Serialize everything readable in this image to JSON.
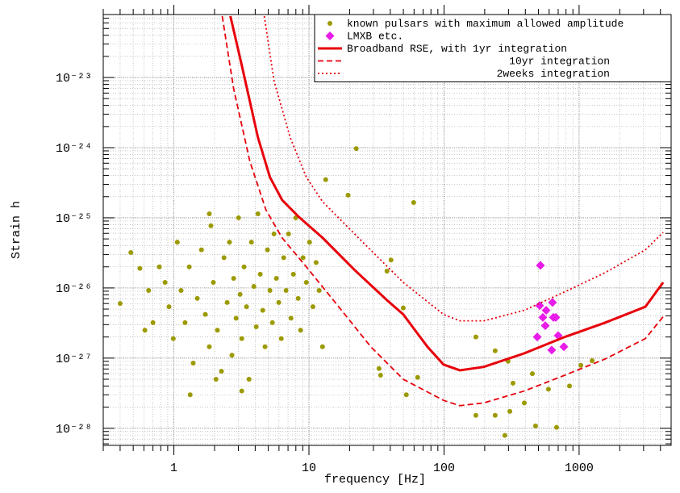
{
  "chart_data": {
    "type": "scatter",
    "xlabel": "frequency [Hz]",
    "ylabel": "Strain h",
    "xlog": true,
    "ylog": true,
    "grid": true,
    "legend": "upper right",
    "xlim": [
      0.3,
      4800
    ],
    "ylim": [
      5.7e-29,
      7.9e-23
    ],
    "xticks": [
      1,
      10,
      100,
      1000
    ],
    "yticks": [
      {
        "value": 1e-28,
        "label": "10⁻²⁸"
      },
      {
        "value": 1e-27,
        "label": "10⁻²⁷"
      },
      {
        "value": 1e-26,
        "label": "10⁻²⁶"
      },
      {
        "value": 1e-25,
        "label": "10⁻²⁵"
      },
      {
        "value": 1e-24,
        "label": "10⁻²⁴"
      },
      {
        "value": 1e-23,
        "label": "10⁻²³"
      }
    ],
    "series": [
      {
        "name": "known pulsars with maximum allowed amplitude",
        "type": "scatter",
        "marker": "circle",
        "color": "#9c9a00",
        "x": [
          0.4,
          0.48,
          0.56,
          22.4,
          19.5,
          59.6,
          13.3,
          40.5,
          37.8,
          49.9,
          172,
          239,
          298,
          451,
          324,
          393,
          593,
          681,
          307,
          282,
          476,
          1030,
          1248,
          849,
          239,
          33.0,
          33.9,
          52.6,
          63.8,
          172,
          0.86,
          0.92,
          0.99,
          1.06,
          1.13,
          1.21,
          1.3,
          1.39,
          1.49,
          1.6,
          1.71,
          1.83,
          1.88,
          1.96,
          2.1,
          2.25,
          2.35,
          2.48,
          2.58,
          2.69,
          2.77,
          2.89,
          3.01,
          3.09,
          3.18,
          3.31,
          3.45,
          3.6,
          3.75,
          3.91,
          4.07,
          4.19,
          4.36,
          4.55,
          4.73,
          4.93,
          5.14,
          5.36,
          5.51,
          5.74,
          5.98,
          6.24,
          6.5,
          6.77,
          7.06,
          7.36,
          7.67,
          7.99,
          8.32,
          8.67,
          9.04,
          9.56,
          10.1,
          10.7,
          11.3,
          11.9,
          12.6,
          1.32,
          2.05,
          3.18,
          0.7,
          0.65,
          0.78,
          0.61,
          1.83
        ],
        "values": [
          6e-27,
          3.2e-26,
          1.9e-26,
          9.7e-25,
          2.1e-25,
          1.65e-25,
          3.5e-25,
          2.5e-26,
          1.74e-26,
          5.2e-27,
          2e-27,
          1.27e-27,
          9e-28,
          6e-28,
          4.4e-28,
          2.3e-28,
          3.6e-28,
          1.03e-28,
          1.74e-28,
          7.9e-29,
          1.08e-28,
          7.9e-28,
          9.2e-28,
          4e-28,
          1.53e-28,
          7.1e-28,
          5.7e-28,
          3e-28,
          5.3e-28,
          1.53e-28,
          1.2e-26,
          5.4e-27,
          1.9e-27,
          4.5e-26,
          9.2e-27,
          3.2e-27,
          2e-26,
          8.5e-28,
          7.1e-27,
          3.5e-26,
          4.2e-27,
          1.45e-27,
          7.7e-26,
          1.2e-26,
          2.5e-27,
          6.5e-28,
          2.7e-26,
          6.2e-27,
          4.5e-26,
          1.1e-27,
          1.37e-26,
          3.7e-27,
          1e-25,
          8.1e-27,
          1.9e-27,
          2e-26,
          5.4e-27,
          5e-28,
          4.5e-26,
          1.05e-26,
          2.8e-27,
          1.14e-25,
          1.57e-26,
          4.8e-27,
          1.45e-27,
          3.5e-26,
          9.2e-27,
          3.2e-27,
          5.9e-26,
          1.37e-26,
          6.2e-27,
          1.9e-27,
          2.7e-26,
          9.2e-27,
          5.9e-26,
          3.7e-27,
          1.57e-26,
          1e-25,
          7.1e-27,
          2.5e-27,
          2.7e-26,
          1.2e-26,
          4.5e-26,
          5.4e-27,
          2.3e-26,
          9.2e-27,
          1.45e-27,
          3e-28,
          5e-28,
          3.4e-28,
          3.2e-27,
          9.2e-27,
          2e-26,
          2.5e-27,
          1.14e-25
        ]
      },
      {
        "name": "LMXB etc.",
        "type": "scatter",
        "marker": "diamond",
        "color": "#e81ce8",
        "x": [
          517,
          510,
          570,
          635,
          539,
          562,
          645,
          672,
          490,
          700,
          627,
          771
        ],
        "values": [
          2.1e-26,
          5.6e-27,
          4.8e-27,
          6.2e-27,
          3.8e-27,
          2.9e-27,
          3.8e-27,
          3.8e-27,
          2e-27,
          2.1e-27,
          1.3e-27,
          1.45e-27
        ]
      },
      {
        "name": "Broadband RSE, with 1yr integration",
        "type": "line",
        "dash": "solid",
        "color": "#e8000b",
        "x": [
          2.62,
          3.18,
          4.19,
          5.14,
          6.32,
          8.32,
          12.6,
          21.8,
          37.8,
          49.9,
          75.4,
          99.1,
          131,
          197,
          393,
          782,
          1556,
          3097,
          4190
        ],
        "values": [
          7.5e-23,
          1.5e-23,
          1.4e-24,
          3.8e-25,
          1.8e-25,
          1.05e-25,
          5.2e-26,
          1.8e-26,
          6.7e-27,
          4.2e-27,
          1.45e-27,
          8.1e-28,
          6.7e-28,
          7.5e-28,
          1.17e-27,
          2e-27,
          3.2e-27,
          5.4e-27,
          1.2e-26
        ]
      },
      {
        "name": "10yr integration",
        "type": "line",
        "dash": "dashed",
        "color": "#e8000b",
        "x": [
          2.28,
          2.77,
          3.65,
          4.8,
          6.32,
          9.56,
          16.6,
          28.7,
          49.9,
          99.1,
          131,
          197,
          393,
          782,
          1556,
          3097,
          4190
        ],
        "values": [
          7.5e-23,
          6.9e-24,
          6.4e-25,
          1.3e-25,
          5.2e-26,
          2e-26,
          5.4e-27,
          1.45e-27,
          5e-28,
          2.5e-28,
          2.1e-28,
          2.3e-28,
          3.4e-28,
          5.7e-28,
          9.7e-28,
          1.9e-27,
          3.9e-27
        ]
      },
      {
        "name": "2weeks integration",
        "type": "line",
        "dash": "dotted",
        "color": "#e8000b",
        "x": [
          4.67,
          5.51,
          7.26,
          9.56,
          12.6,
          25.0,
          49.9,
          99.1,
          131,
          197,
          393,
          782,
          1556,
          3097,
          4190
        ],
        "values": [
          7.5e-23,
          9e-24,
          1.4e-24,
          3.8e-25,
          1.7e-25,
          4.5e-26,
          1.2e-26,
          4.2e-27,
          3.4e-27,
          3.4e-27,
          4.8e-27,
          8.8e-27,
          1.65e-26,
          3.5e-26,
          6.2e-26
        ]
      }
    ]
  }
}
